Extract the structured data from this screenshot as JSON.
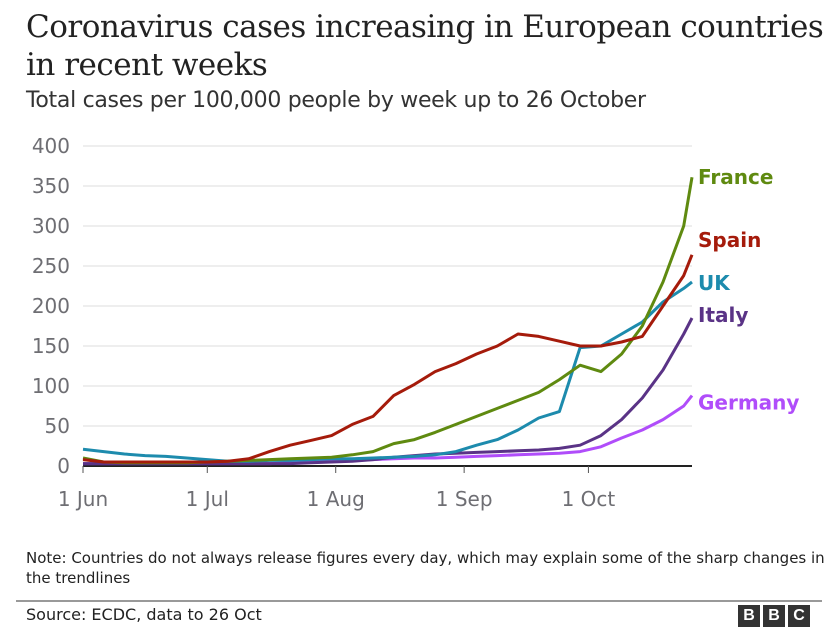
{
  "chart_data": {
    "type": "line",
    "title": "Coronavirus cases increasing in European countries in recent weeks",
    "subtitle": "Total cases per 100,000 people by week up to 26 October",
    "xlabel": "",
    "ylabel": "",
    "ylim": [
      0,
      400
    ],
    "yticks": [
      0,
      50,
      100,
      150,
      200,
      250,
      300,
      350,
      400
    ],
    "xlim_days": [
      0,
      147
    ],
    "xticks": [
      {
        "day": 0,
        "label": "1 Jun"
      },
      {
        "day": 30,
        "label": "1 Jul"
      },
      {
        "day": 61,
        "label": "1 Aug"
      },
      {
        "day": 92,
        "label": "1 Sep"
      },
      {
        "day": 122,
        "label": "1 Oct"
      }
    ],
    "grid": true,
    "legend": "direct labels at line ends (right)",
    "x_days": [
      0,
      5,
      10,
      15,
      20,
      25,
      30,
      35,
      40,
      45,
      50,
      55,
      60,
      65,
      70,
      75,
      80,
      85,
      90,
      95,
      100,
      105,
      110,
      115,
      120,
      125,
      130,
      135,
      140,
      145,
      147
    ],
    "series": [
      {
        "name": "France",
        "color": "#5f8a10",
        "values": [
          10,
          5,
          4,
          4,
          4,
          4,
          5,
          6,
          7,
          8,
          9,
          10,
          11,
          14,
          18,
          28,
          33,
          42,
          52,
          62,
          72,
          82,
          92,
          108,
          126,
          118,
          140,
          175,
          230,
          300,
          361
        ]
      },
      {
        "name": "Spain",
        "color": "#a51b0b",
        "values": [
          8,
          5,
          5,
          5,
          5,
          5,
          5,
          6,
          9,
          18,
          26,
          32,
          38,
          52,
          62,
          88,
          102,
          118,
          128,
          140,
          150,
          165,
          162,
          156,
          150,
          150,
          155,
          162,
          200,
          238,
          264
        ]
      },
      {
        "name": "UK",
        "color": "#1d8bad",
        "values": [
          21,
          18,
          15,
          13,
          12,
          10,
          8,
          6,
          6,
          7,
          7,
          8,
          9,
          9,
          10,
          11,
          12,
          14,
          18,
          26,
          33,
          45,
          60,
          68,
          148,
          150,
          165,
          180,
          205,
          222,
          230
        ]
      },
      {
        "name": "Italy",
        "color": "#5a3386",
        "values": [
          3,
          3,
          3,
          3,
          3,
          3,
          3,
          3,
          3,
          3,
          3,
          4,
          5,
          6,
          8,
          11,
          13,
          15,
          16,
          17,
          18,
          19,
          20,
          22,
          26,
          38,
          58,
          85,
          120,
          165,
          185
        ]
      },
      {
        "name": "Germany",
        "color": "#b04dfa",
        "values": [
          3,
          3,
          3,
          3,
          3,
          3,
          3,
          3,
          3,
          3,
          4,
          5,
          6,
          7,
          8,
          9,
          10,
          10,
          11,
          12,
          13,
          14,
          15,
          16,
          18,
          24,
          35,
          45,
          58,
          75,
          88
        ]
      }
    ]
  },
  "header": {
    "title": "Coronavirus cases increasing in European countries in recent weeks",
    "subtitle": "Total cases per 100,000 people by week up to 26 October"
  },
  "footer": {
    "note": "Note: Countries do not always release figures every day, which may explain some of the sharp changes in the trendlines",
    "source": "Source: ECDC, data to 26 Oct",
    "logo_letters": [
      "B",
      "B",
      "C"
    ]
  }
}
